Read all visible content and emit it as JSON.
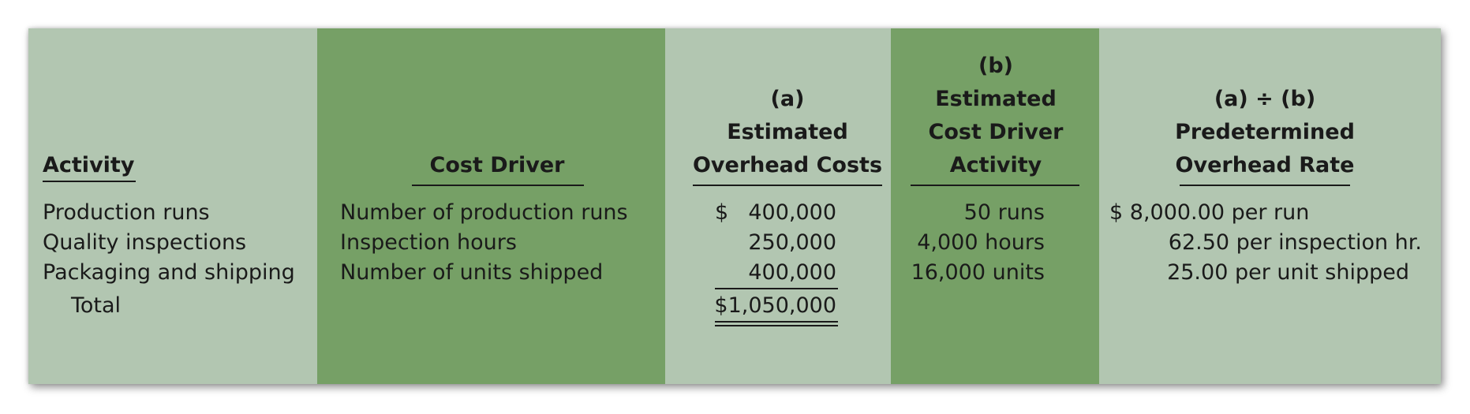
{
  "headers": {
    "activity": "Activity",
    "cost_driver": "Cost Driver",
    "col_a_label": "(a)",
    "col_a_line1": "Estimated",
    "col_a_line2": "Overhead Costs",
    "col_b_label": "(b)",
    "col_b_line1": "Estimated",
    "col_b_line2": "Cost Driver",
    "col_b_line3": "Activity",
    "rate_label": "(a) ÷ (b)",
    "rate_line1": "Predetermined",
    "rate_line2": "Overhead Rate"
  },
  "rows": [
    {
      "activity": "Production runs",
      "driver": "Number of production runs",
      "cost": "400,000",
      "cost_prefix": "$",
      "activity_qty": "50 runs",
      "rate": "$ 8,000.00 per run"
    },
    {
      "activity": "Quality inspections",
      "driver": "Inspection hours",
      "cost": "250,000",
      "activity_qty": "4,000 hours",
      "rate": "62.50 per inspection hr."
    },
    {
      "activity": "Packaging and shipping",
      "driver": "Number of units shipped",
      "cost": "400,000",
      "activity_qty": "16,000 units",
      "rate": "25.00 per unit shipped"
    }
  ],
  "total": {
    "label": "Total",
    "cost": "$1,050,000"
  },
  "colors": {
    "light": "#b2c6b1",
    "dark": "#76a066"
  }
}
